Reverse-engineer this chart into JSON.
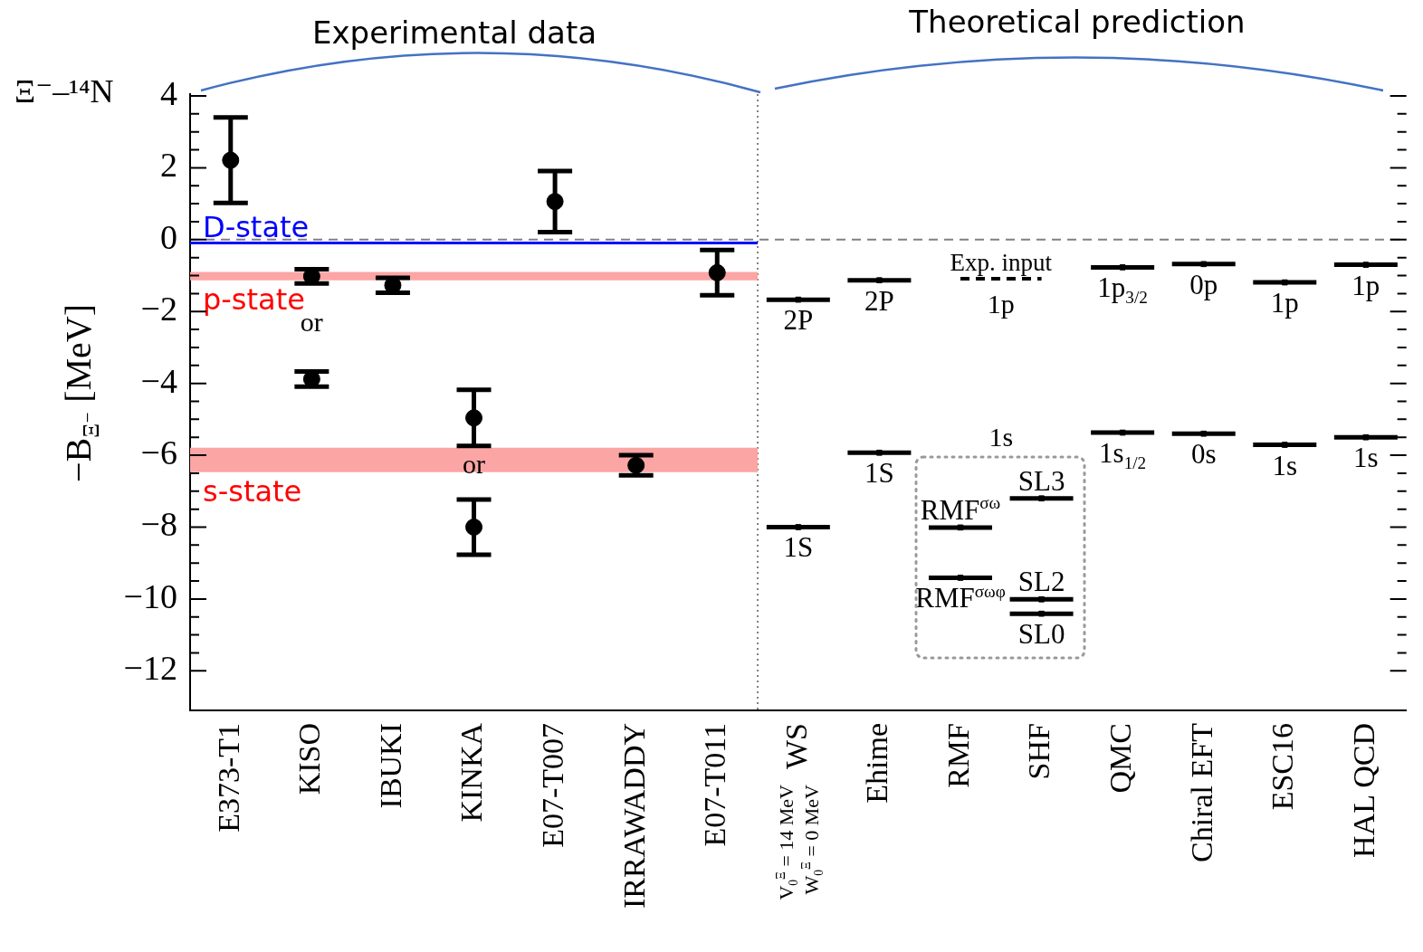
{
  "chart_data": {
    "type": "scatter",
    "title": "Ξ⁻–¹⁴N",
    "ylabel": "−B$_{Ξ⁻}$ [MeV]",
    "categories": [
      "E373-T1",
      "KISO",
      "IBUKI",
      "KINKA",
      "E07-T007",
      "IRRAWADDY",
      "E07-T011",
      "WS",
      "Ehime",
      "RMF",
      "SHF",
      "QMC",
      "Chiral EFT",
      "ESC16",
      "HAL QCD"
    ],
    "series": [
      {
        "color": "#000000",
        "marker": "circle",
        "values": [
          2.21,
          -1.02,
          -1.27,
          -4.96,
          1.06,
          -6.28,
          -0.92,
          null,
          null,
          null,
          null,
          null,
          null,
          null,
          null
        ],
        "errors": [
          1.19,
          0.2,
          0.21,
          0.78,
          0.85,
          0.28,
          0.63,
          null,
          null,
          null,
          null,
          null,
          null,
          null,
          null
        ]
      },
      {
        "color": "#000000",
        "marker": "circle",
        "x": [
          "KISO",
          "KINKA"
        ],
        "values": [
          -3.88,
          -8.0
        ],
        "errors": [
          0.21,
          0.77
        ]
      },
      {
        "color": "#000000",
        "marker": "square",
        "values": [
          null,
          null,
          null,
          null,
          null,
          null,
          null,
          -1.67,
          -1.13,
          null,
          null,
          -0.77,
          -0.68,
          -1.19,
          -0.7
        ]
      },
      {
        "color": "#000000",
        "marker": "square",
        "values": [
          null,
          null,
          null,
          null,
          null,
          null,
          null,
          -8.0,
          -5.93,
          null,
          null,
          -5.37,
          -5.4,
          -5.71,
          -5.5
        ]
      },
      {
        "color": "#000000",
        "marker": "square",
        "x": [
          "RMF",
          "RMF"
        ],
        "values": [
          -8.01,
          -9.41
        ]
      },
      {
        "color": "#000000",
        "marker": "square",
        "x": [
          "SHF",
          "SHF",
          "SHF"
        ],
        "values": [
          -7.2,
          -10.01,
          -10.41
        ]
      },
      {
        "type": "line",
        "color": "#000000",
        "marker": "none",
        "line_style": "dashed",
        "x": [
          "RMF",
          "SHF"
        ],
        "values": [
          -1.09,
          -1.09
        ]
      }
    ],
    "ylim": [
      -13.1,
      4.05
    ],
    "yticks": [
      -12,
      {
        "value": -11.5,
        "label": null
      },
      {
        "value": -11,
        "label": null
      },
      {
        "value": -10.5,
        "label": null
      },
      -10,
      {
        "value": -9.5,
        "label": null
      },
      {
        "value": -9,
        "label": null
      },
      {
        "value": -8.5,
        "label": null
      },
      -8,
      {
        "value": -7.5,
        "label": null
      },
      {
        "value": -7,
        "label": null
      },
      {
        "value": -6.5,
        "label": null
      },
      -6,
      {
        "value": -5.5,
        "label": null
      },
      {
        "value": -5,
        "label": null
      },
      {
        "value": -4.5,
        "label": null
      },
      -4,
      {
        "value": -3.5,
        "label": null
      },
      {
        "value": -3,
        "label": null
      },
      {
        "value": -2.5,
        "label": null
      },
      -2,
      {
        "value": -1.5,
        "label": null
      },
      {
        "value": -1,
        "label": null
      },
      {
        "value": -0.5,
        "label": null
      },
      0,
      {
        "value": 0.5,
        "label": null
      },
      {
        "value": 1,
        "label": null
      },
      {
        "value": 1.5,
        "label": null
      },
      2,
      {
        "value": 2.5,
        "label": null
      },
      {
        "value": 3,
        "label": null
      },
      {
        "value": 3.5,
        "label": null
      },
      4
    ],
    "ref_lines": [
      {
        "axis": "y",
        "value": 0,
        "color": "#808080",
        "line_style": "dashed"
      },
      {
        "axis": "y",
        "value": -0.09,
        "color": "#0000ff",
        "line_style": "solid",
        "label": "D-state"
      }
    ],
    "bands": [
      {
        "axis": "y",
        "from": -0.9,
        "to": -1.13,
        "color": "#fca5a5",
        "label": "p-state"
      },
      {
        "axis": "y",
        "from": -5.79,
        "to": -6.47,
        "color": "#fca5a5",
        "label": "s-state"
      }
    ],
    "annotations": [
      "Experimental data",
      "Theoretical prediction",
      "or",
      "or",
      "Exp. input",
      "1p",
      "1s",
      "V$_{0}$$^{Ξ}$ = 14 MeV",
      "W$_{0}$$^{Ξ}$ = 0 MeV",
      "2P",
      "2P",
      "1p$_{3/2}$",
      "0p",
      "1p",
      "1p",
      "1S",
      "1S",
      "1s$_{1/2}$",
      "0s",
      "1s",
      "1s",
      "RMF$^{σω}$",
      "RMF$^{σωφ}$",
      "SL3",
      "SL2",
      "SL0"
    ],
    "grid": false,
    "legend": false
  }
}
